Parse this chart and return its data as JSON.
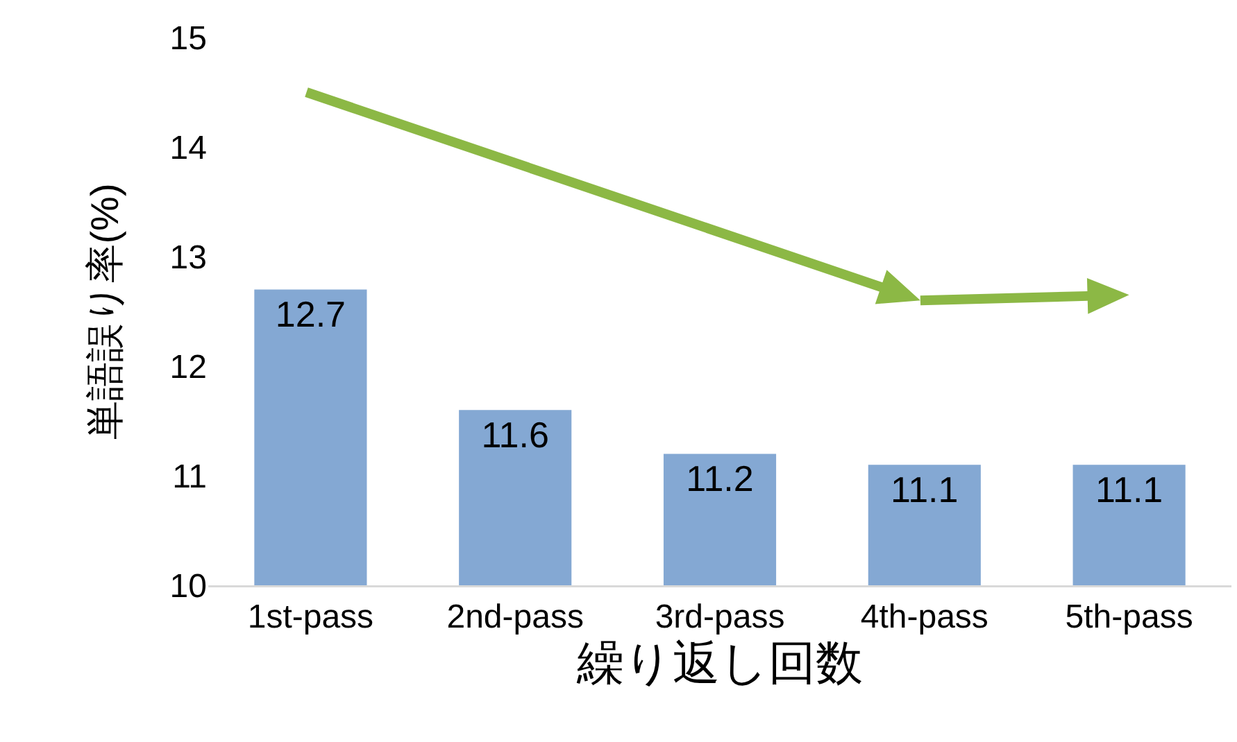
{
  "chart_data": {
    "type": "bar",
    "xlabel": "繰り返し回数",
    "ylabel": "単語誤り率(%)",
    "categories": [
      "1st-pass",
      "2nd-pass",
      "3rd-pass",
      "4th-pass",
      "5th-pass"
    ],
    "values": [
      12.7,
      11.6,
      11.2,
      11.1,
      11.1
    ],
    "color": "#84a8d3",
    "ylim": [
      10,
      15
    ],
    "yticks": [
      10,
      11,
      12,
      13,
      14,
      15
    ],
    "grid": false,
    "legend": false,
    "data_labels": true
  }
}
